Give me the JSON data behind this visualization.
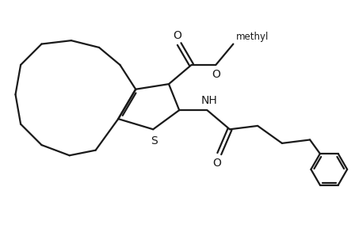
{
  "bg_color": "#ffffff",
  "line_color": "#1a1a1a",
  "line_width": 1.6,
  "figsize": [
    4.48,
    2.98
  ],
  "dpi": 100,
  "xlim": [
    0,
    10
  ],
  "ylim": [
    0,
    6.65
  ]
}
